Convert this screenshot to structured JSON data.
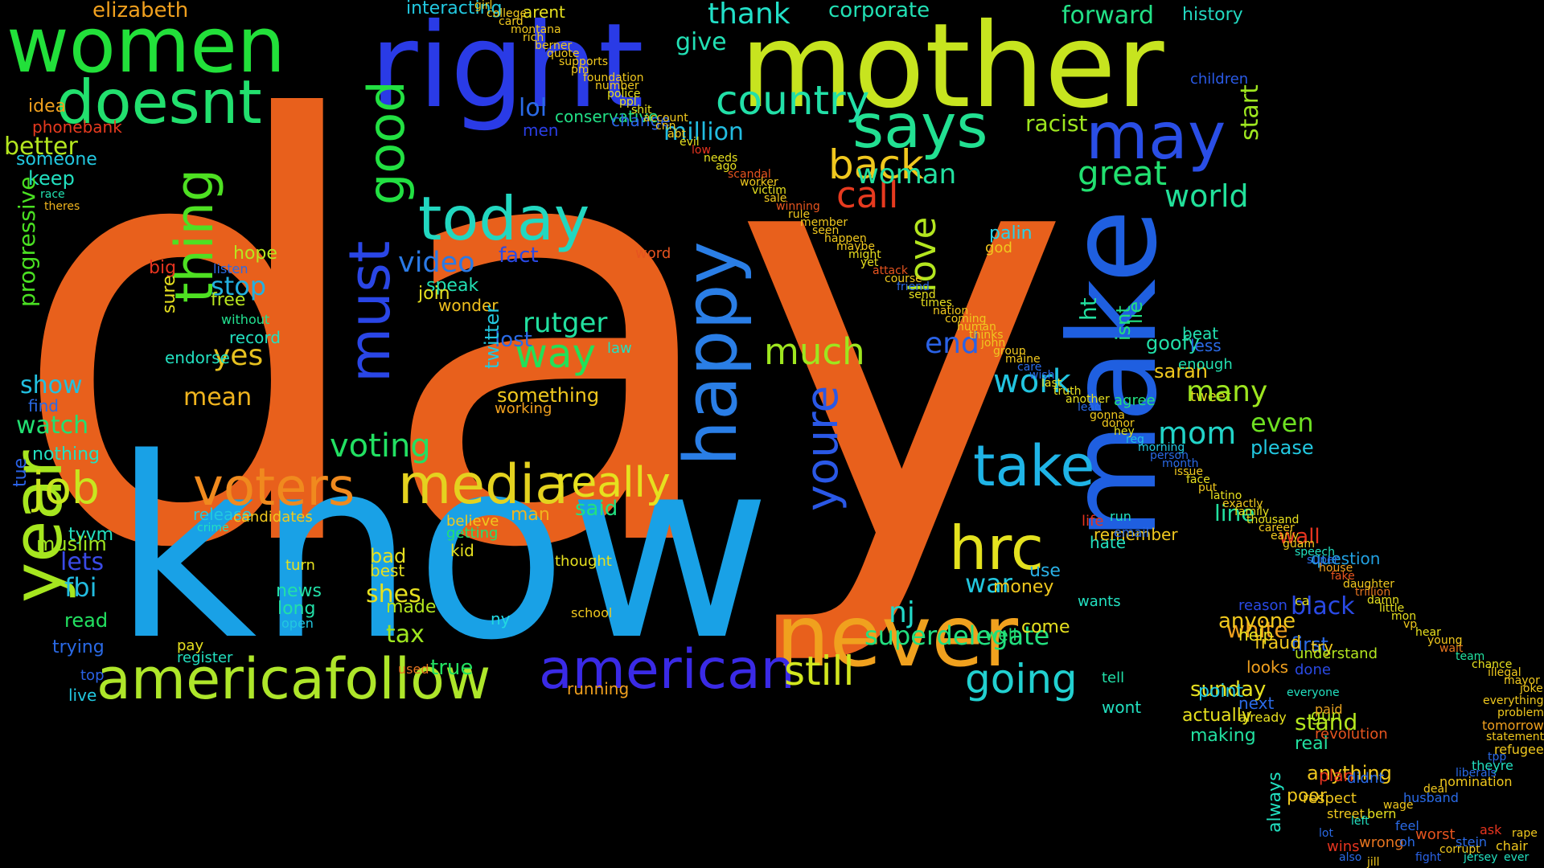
{
  "words": [
    {
      "text": "day",
      "color": "#e8601c"
    },
    {
      "text": "know",
      "color": "#19a1e6"
    },
    {
      "text": "make",
      "color": "#1f5fe0"
    },
    {
      "text": "mother",
      "color": "#c7e41f"
    },
    {
      "text": "right",
      "color": "#2a3be6"
    },
    {
      "text": "women",
      "color": "#22e03a"
    },
    {
      "text": "never",
      "color": "#f0a11e"
    },
    {
      "text": "happy",
      "color": "#2a7ee6"
    },
    {
      "text": "year",
      "color": "#a6e61f"
    },
    {
      "text": "americafollow",
      "color": "#aee62a"
    },
    {
      "text": "doesnt",
      "color": "#22e06e"
    },
    {
      "text": "today",
      "color": "#22d7c0"
    },
    {
      "text": "media",
      "color": "#e4d21f"
    },
    {
      "text": "voters",
      "color": "#f08a1e"
    },
    {
      "text": "hrc",
      "color": "#e4e21f"
    },
    {
      "text": "must",
      "color": "#2a46e6"
    },
    {
      "text": "says",
      "color": "#22e092"
    },
    {
      "text": "may",
      "color": "#2a4ee6"
    },
    {
      "text": "thing",
      "color": "#4ee022"
    },
    {
      "text": "good",
      "color": "#22e042"
    },
    {
      "text": "american",
      "color": "#3a2ae6"
    },
    {
      "text": "take",
      "color": "#1fb4e6"
    },
    {
      "text": "really",
      "color": "#e6e01f"
    },
    {
      "text": "youre",
      "color": "#2a58e6"
    },
    {
      "text": "country",
      "color": "#22e0a8"
    },
    {
      "text": "job",
      "color": "#c8e61f"
    },
    {
      "text": "back",
      "color": "#f0c81e"
    },
    {
      "text": "much",
      "color": "#9ee61f"
    },
    {
      "text": "way",
      "color": "#22e058"
    },
    {
      "text": "going",
      "color": "#22d0d0"
    },
    {
      "text": "still",
      "color": "#d2e61f"
    },
    {
      "text": "great",
      "color": "#22e070"
    },
    {
      "text": "call",
      "color": "#e63a1f"
    },
    {
      "text": "love",
      "color": "#b4e61f"
    },
    {
      "text": "voting",
      "color": "#22e062"
    },
    {
      "text": "video",
      "color": "#2a7ae6"
    },
    {
      "text": "work",
      "color": "#22c4e0"
    },
    {
      "text": "mom",
      "color": "#22d4c8"
    },
    {
      "text": "world",
      "color": "#22e09a"
    },
    {
      "text": "woman",
      "color": "#22e0a0"
    },
    {
      "text": "thank",
      "color": "#22e0c8"
    },
    {
      "text": "forward",
      "color": "#22e086"
    },
    {
      "text": "corporate",
      "color": "#22e0b4"
    },
    {
      "text": "history",
      "color": "#22d8c0"
    },
    {
      "text": "elizabeth",
      "color": "#f0a01e"
    },
    {
      "text": "interacting",
      "color": "#22c8e0"
    },
    {
      "text": "arent",
      "color": "#e6e01f"
    },
    {
      "text": "give",
      "color": "#22e0b4"
    },
    {
      "text": "million",
      "color": "#22bce0"
    },
    {
      "text": "lol",
      "color": "#2a6ae6"
    },
    {
      "text": "conservative",
      "color": "#22e086"
    },
    {
      "text": "men",
      "color": "#2a3ee6"
    },
    {
      "text": "change",
      "color": "#2a62e6"
    },
    {
      "text": "racist",
      "color": "#9ee61f"
    },
    {
      "text": "children",
      "color": "#2a5ae6"
    },
    {
      "text": "start",
      "color": "#9ee61f"
    },
    {
      "text": "better",
      "color": "#b4e61f"
    },
    {
      "text": "someone",
      "color": "#22c8e0"
    },
    {
      "text": "idea",
      "color": "#f0a01e"
    },
    {
      "text": "phonebank",
      "color": "#e63a1f"
    },
    {
      "text": "keep",
      "color": "#22e0c0"
    },
    {
      "text": "progressive",
      "color": "#4ae022"
    },
    {
      "text": "race",
      "color": "#22e0b0"
    },
    {
      "text": "theres",
      "color": "#f0b41e"
    },
    {
      "text": "show",
      "color": "#22c0e0"
    },
    {
      "text": "watch",
      "color": "#22e072"
    },
    {
      "text": "nothing",
      "color": "#22e0c0"
    },
    {
      "text": "find",
      "color": "#2a6ae6"
    },
    {
      "text": "tue",
      "color": "#2a62e6"
    },
    {
      "text": "lets",
      "color": "#3a4ae6"
    },
    {
      "text": "fbi",
      "color": "#22bce0"
    },
    {
      "text": "tyvm",
      "color": "#22e0c0"
    },
    {
      "text": "muslim",
      "color": "#a0e61f"
    },
    {
      "text": "read",
      "color": "#22e060"
    },
    {
      "text": "trying",
      "color": "#2a6ae6"
    },
    {
      "text": "top",
      "color": "#2a62e6"
    },
    {
      "text": "live",
      "color": "#22c8e0"
    },
    {
      "text": "stop",
      "color": "#22b0e0"
    },
    {
      "text": "yes",
      "color": "#e6c01f"
    },
    {
      "text": "mean",
      "color": "#f0b41e"
    },
    {
      "text": "hope",
      "color": "#b8e61f"
    },
    {
      "text": "free",
      "color": "#b8e61f"
    },
    {
      "text": "big",
      "color": "#e6341f"
    },
    {
      "text": "sure",
      "color": "#e6e01f"
    },
    {
      "text": "endorse",
      "color": "#22e0c0"
    },
    {
      "text": "record",
      "color": "#22e0c0"
    },
    {
      "text": "without",
      "color": "#22e090"
    },
    {
      "text": "listen",
      "color": "#2a6ae6"
    },
    {
      "text": "rutger",
      "color": "#22e0a0"
    },
    {
      "text": "lost",
      "color": "#2a6ae6"
    },
    {
      "text": "fact",
      "color": "#2a4ae6"
    },
    {
      "text": "speak",
      "color": "#22e0b4"
    },
    {
      "text": "join",
      "color": "#e6e01f"
    },
    {
      "text": "wonder",
      "color": "#f0c01e"
    },
    {
      "text": "twitter",
      "color": "#22c8e0"
    },
    {
      "text": "something",
      "color": "#f0c81e"
    },
    {
      "text": "working",
      "color": "#f0a01e"
    },
    {
      "text": "law",
      "color": "#22e0c0"
    },
    {
      "text": "word",
      "color": "#e6541f"
    },
    {
      "text": "release",
      "color": "#22c8e0"
    },
    {
      "text": "crime",
      "color": "#22e0c0"
    },
    {
      "text": "candidates",
      "color": "#f0c81e"
    },
    {
      "text": "believe",
      "color": "#f0c81e"
    },
    {
      "text": "getting",
      "color": "#22e070"
    },
    {
      "text": "kid",
      "color": "#e6e01f"
    },
    {
      "text": "man",
      "color": "#f0b41e"
    },
    {
      "text": "said",
      "color": "#22e080"
    },
    {
      "text": "bad",
      "color": "#e6e01f"
    },
    {
      "text": "best",
      "color": "#e6e01f"
    },
    {
      "text": "thought",
      "color": "#e6e01f"
    },
    {
      "text": "shes",
      "color": "#e6e01f"
    },
    {
      "text": "made",
      "color": "#b4e61f"
    },
    {
      "text": "tax",
      "color": "#9ee61f"
    },
    {
      "text": "ny",
      "color": "#22d8e0"
    },
    {
      "text": "school",
      "color": "#f0c81e"
    },
    {
      "text": "true",
      "color": "#22e060"
    },
    {
      "text": "running",
      "color": "#f0a01e"
    },
    {
      "text": "news",
      "color": "#22e0a8"
    },
    {
      "text": "long",
      "color": "#22e0a8"
    },
    {
      "text": "turn",
      "color": "#e6e01f"
    },
    {
      "text": "open",
      "color": "#22c8e0"
    },
    {
      "text": "pay",
      "color": "#e6e01f"
    },
    {
      "text": "register",
      "color": "#22e0c0"
    },
    {
      "text": "used",
      "color": "#e6741f"
    },
    {
      "text": "palin",
      "color": "#2ad0e6"
    },
    {
      "text": "god",
      "color": "#f0c81e"
    },
    {
      "text": "ht",
      "color": "#22e0a0"
    },
    {
      "text": "isnt",
      "color": "#22e080"
    },
    {
      "text": "lie",
      "color": "#22e080"
    },
    {
      "text": "goofy",
      "color": "#22e0a8"
    },
    {
      "text": "sarah",
      "color": "#f0c81e"
    },
    {
      "text": "agree",
      "color": "#22e080"
    },
    {
      "text": "enough",
      "color": "#22e0b0"
    },
    {
      "text": "beat",
      "color": "#22e0b0"
    },
    {
      "text": "less",
      "color": "#2a6ae6"
    },
    {
      "text": "tweet",
      "color": "#e6e01f"
    },
    {
      "text": "end",
      "color": "#2a62e6"
    },
    {
      "text": "many",
      "color": "#9ee61f"
    },
    {
      "text": "even",
      "color": "#6ee022"
    },
    {
      "text": "please",
      "color": "#22c8e0"
    },
    {
      "text": "line",
      "color": "#22e0a0"
    },
    {
      "text": "wall",
      "color": "#e6341f"
    },
    {
      "text": "question",
      "color": "#22a0e0"
    },
    {
      "text": "superdelegate",
      "color": "#22e080"
    },
    {
      "text": "nj",
      "color": "#22d8c8"
    },
    {
      "text": "war",
      "color": "#22c8e0"
    },
    {
      "text": "well",
      "color": "#22e070"
    },
    {
      "text": "come",
      "color": "#e6e01f"
    },
    {
      "text": "use",
      "color": "#2ab0e6"
    },
    {
      "text": "money",
      "color": "#f0c81e"
    },
    {
      "text": "wants",
      "color": "#22e0c0"
    },
    {
      "text": "hate",
      "color": "#22e0c0"
    },
    {
      "text": "remember",
      "color": "#f0c81e"
    },
    {
      "text": "run",
      "color": "#22e0c0"
    },
    {
      "text": "email",
      "color": "#2a6ae6"
    },
    {
      "text": "life",
      "color": "#e6341f"
    },
    {
      "text": "white",
      "color": "#f0a01e"
    },
    {
      "text": "first",
      "color": "#2a6ae6"
    },
    {
      "text": "black",
      "color": "#2a4ae6"
    },
    {
      "text": "sunday",
      "color": "#e6e01f"
    },
    {
      "text": "help",
      "color": "#e6e01f"
    },
    {
      "text": "anyone",
      "color": "#f0c81e"
    },
    {
      "text": "reason",
      "color": "#2a4ae6"
    },
    {
      "text": "ca",
      "color": "#e6e01f"
    },
    {
      "text": "try",
      "color": "#f0c81e"
    },
    {
      "text": "stand",
      "color": "#b4e61f"
    },
    {
      "text": "gun",
      "color": "#b4e61f"
    },
    {
      "text": "paid",
      "color": "#e6a01f"
    },
    {
      "text": "understand",
      "color": "#b4e61f"
    },
    {
      "text": "fraud",
      "color": "#f0c81e"
    },
    {
      "text": "looks",
      "color": "#f0a01e"
    },
    {
      "text": "done",
      "color": "#2a4ae6"
    },
    {
      "text": "tell",
      "color": "#22e0a8"
    },
    {
      "text": "wont",
      "color": "#22e0c0"
    },
    {
      "text": "point",
      "color": "#22c8e0"
    },
    {
      "text": "next",
      "color": "#2a6ae6"
    },
    {
      "text": "already",
      "color": "#e6e01f"
    },
    {
      "text": "everyone",
      "color": "#22e0c0"
    },
    {
      "text": "always",
      "color": "#22e0c0"
    },
    {
      "text": "actually",
      "color": "#e6e01f"
    },
    {
      "text": "making",
      "color": "#22e0a0"
    },
    {
      "text": "real",
      "color": "#22e0a0"
    },
    {
      "text": "revolution",
      "color": "#e6541f"
    },
    {
      "text": "anything",
      "color": "#f0c81e"
    },
    {
      "text": "plan",
      "color": "#e6341f"
    },
    {
      "text": "didnt",
      "color": "#2a6ae6"
    },
    {
      "text": "respect",
      "color": "#f0c81e"
    },
    {
      "text": "poor",
      "color": "#f0c81e"
    },
    {
      "text": "street",
      "color": "#f0c81e"
    },
    {
      "text": "lot",
      "color": "#2a6ae6"
    },
    {
      "text": "left",
      "color": "#22e0c0"
    },
    {
      "text": "wins",
      "color": "#e6341f"
    },
    {
      "text": "also",
      "color": "#2a6ae6"
    },
    {
      "text": "wrong",
      "color": "#e6741f"
    },
    {
      "text": "feel",
      "color": "#2a6ae6"
    },
    {
      "text": "oh",
      "color": "#2a6ae6"
    },
    {
      "text": "worst",
      "color": "#e6541f"
    },
    {
      "text": "jill",
      "color": "#f0c81e"
    },
    {
      "text": "fight",
      "color": "#2a62e6"
    },
    {
      "text": "corrupt",
      "color": "#f0c81e"
    },
    {
      "text": "stein",
      "color": "#2a6ae6"
    },
    {
      "text": "jersey",
      "color": "#22e0c0"
    },
    {
      "text": "ask",
      "color": "#e6341f"
    },
    {
      "text": "chair",
      "color": "#f0c81e"
    },
    {
      "text": "ever",
      "color": "#22e0c0"
    },
    {
      "text": "rape",
      "color": "#f0c81e"
    },
    {
      "text": "bern",
      "color": "#e6e01f"
    },
    {
      "text": "wage",
      "color": "#f0c81e"
    },
    {
      "text": "husband",
      "color": "#2a6ae6"
    },
    {
      "text": "deal",
      "color": "#f0c81e"
    },
    {
      "text": "nomination",
      "color": "#f0c81e"
    },
    {
      "text": "liberals",
      "color": "#2a6ae6"
    },
    {
      "text": "theyre",
      "color": "#22e0c0"
    },
    {
      "text": "tpp",
      "color": "#2a6ae6"
    },
    {
      "text": "refugee",
      "color": "#f0c81e"
    },
    {
      "text": "statement",
      "color": "#f0c81e"
    },
    {
      "text": "tomorrow",
      "color": "#f0a01e"
    },
    {
      "text": "problem",
      "color": "#f0c81e"
    },
    {
      "text": "everything",
      "color": "#f0c81e"
    },
    {
      "text": "joke",
      "color": "#f0c81e"
    },
    {
      "text": "mayor",
      "color": "#f0c81e"
    },
    {
      "text": "illegal",
      "color": "#f0c81e"
    },
    {
      "text": "chance",
      "color": "#e6e01f"
    },
    {
      "text": "team",
      "color": "#22e0a0"
    },
    {
      "text": "wait",
      "color": "#e6741f"
    },
    {
      "text": "young",
      "color": "#f0c81e"
    },
    {
      "text": "hear",
      "color": "#e6e01f"
    },
    {
      "text": "vp",
      "color": "#f0c81e"
    },
    {
      "text": "mon",
      "color": "#e6e01f"
    },
    {
      "text": "little",
      "color": "#e6e01f"
    },
    {
      "text": "damn",
      "color": "#e6e01f"
    },
    {
      "text": "trillion",
      "color": "#e6741f"
    },
    {
      "text": "daughter",
      "color": "#f0c81e"
    },
    {
      "text": "fake",
      "color": "#e6541f"
    },
    {
      "text": "house",
      "color": "#f0a01e"
    },
    {
      "text": "super",
      "color": "#2a6ae6"
    },
    {
      "text": "speech",
      "color": "#22e0c0"
    },
    {
      "text": "guam",
      "color": "#f0c81e"
    },
    {
      "text": "early",
      "color": "#f0c81e"
    },
    {
      "text": "career",
      "color": "#f0c81e"
    },
    {
      "text": "thousand",
      "color": "#e6e01f"
    },
    {
      "text": "family",
      "color": "#e6e01f"
    },
    {
      "text": "exactly",
      "color": "#f0c81e"
    },
    {
      "text": "latino",
      "color": "#e6e01f"
    },
    {
      "text": "put",
      "color": "#f0c81e"
    },
    {
      "text": "face",
      "color": "#e6e01f"
    },
    {
      "text": "issue",
      "color": "#f0c81e"
    },
    {
      "text": "month",
      "color": "#2a6ae6"
    },
    {
      "text": "person",
      "color": "#2a6ae6"
    },
    {
      "text": "morning",
      "color": "#22c8e0"
    },
    {
      "text": "reg",
      "color": "#22c0e0"
    },
    {
      "text": "hey",
      "color": "#e6e01f"
    },
    {
      "text": "donor",
      "color": "#f0c81e"
    },
    {
      "text": "gonna",
      "color": "#f0c81e"
    },
    {
      "text": "lead",
      "color": "#2a6ae6"
    },
    {
      "text": "another",
      "color": "#e6e01f"
    },
    {
      "text": "truth",
      "color": "#e6e01f"
    },
    {
      "text": "last",
      "color": "#e6e01f"
    },
    {
      "text": "wish",
      "color": "#2a6ae6"
    },
    {
      "text": "care",
      "color": "#2a6ae6"
    },
    {
      "text": "maine",
      "color": "#f0c81e"
    },
    {
      "text": "group",
      "color": "#f0c81e"
    },
    {
      "text": "john",
      "color": "#f0c81e"
    },
    {
      "text": "thinks",
      "color": "#f0c81e"
    },
    {
      "text": "human",
      "color": "#f0c81e"
    },
    {
      "text": "coming",
      "color": "#f0c81e"
    },
    {
      "text": "nation",
      "color": "#f0c81e"
    },
    {
      "text": "times",
      "color": "#e6e01f"
    },
    {
      "text": "send",
      "color": "#e6e01f"
    },
    {
      "text": "friend",
      "color": "#2a6ae6"
    },
    {
      "text": "course",
      "color": "#f0c81e"
    },
    {
      "text": "attack",
      "color": "#e6541f"
    },
    {
      "text": "yet",
      "color": "#e6e01f"
    },
    {
      "text": "might",
      "color": "#e6e01f"
    },
    {
      "text": "maybe",
      "color": "#f0c81e"
    },
    {
      "text": "happen",
      "color": "#f0c81e"
    },
    {
      "text": "seen",
      "color": "#f0c81e"
    },
    {
      "text": "member",
      "color": "#f0c81e"
    },
    {
      "text": "rule",
      "color": "#f0c81e"
    },
    {
      "text": "winning",
      "color": "#e6541f"
    },
    {
      "text": "sale",
      "color": "#f0c81e"
    },
    {
      "text": "victim",
      "color": "#e6e01f"
    },
    {
      "text": "worker",
      "color": "#f0c81e"
    },
    {
      "text": "scandal",
      "color": "#e6541f"
    },
    {
      "text": "ago",
      "color": "#e6e01f"
    },
    {
      "text": "needs",
      "color": "#e6e01f"
    },
    {
      "text": "low",
      "color": "#e6341f"
    },
    {
      "text": "evil",
      "color": "#e6e01f"
    },
    {
      "text": "abt",
      "color": "#f0c81e"
    },
    {
      "text": "cnn",
      "color": "#f0c81e"
    },
    {
      "text": "account",
      "color": "#f0c81e"
    },
    {
      "text": "shit",
      "color": "#e6e01f"
    },
    {
      "text": "ppl",
      "color": "#e6e01f"
    },
    {
      "text": "police",
      "color": "#e6e01f"
    },
    {
      "text": "number",
      "color": "#f0c81e"
    },
    {
      "text": "foundation",
      "color": "#f0c81e"
    },
    {
      "text": "pm",
      "color": "#f0c81e"
    },
    {
      "text": "supports",
      "color": "#f0c81e"
    },
    {
      "text": "quote",
      "color": "#f0c81e"
    },
    {
      "text": "berner",
      "color": "#f0c81e"
    },
    {
      "text": "rich",
      "color": "#f0c81e"
    },
    {
      "text": "montana",
      "color": "#f0c81e"
    },
    {
      "text": "card",
      "color": "#f0c81e"
    },
    {
      "text": "college",
      "color": "#f0c81e"
    },
    {
      "text": "girl",
      "color": "#f0c81e"
    },
    {
      "text": "pretty",
      "color": "#f0c81e"
    },
    {
      "text": "government",
      "color": "#f0c81e"
    },
    {
      "text": "ive",
      "color": "#e6e01f"
    }
  ]
}
